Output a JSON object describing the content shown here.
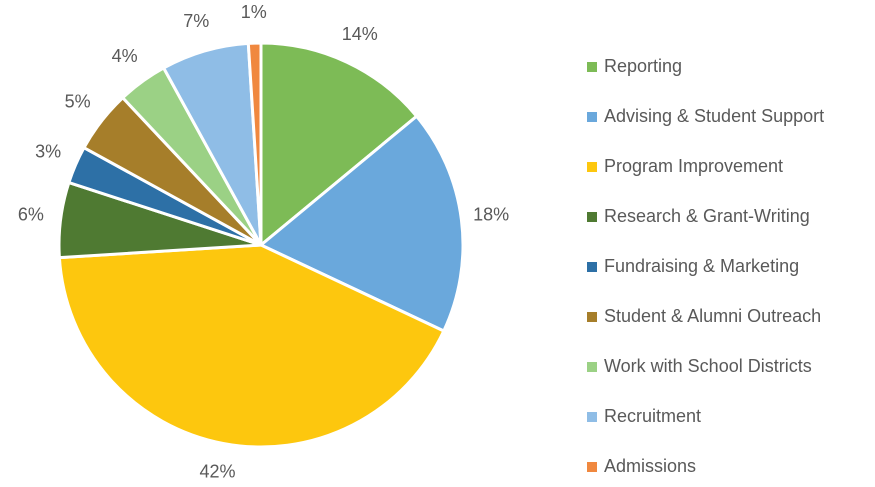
{
  "chart_data": {
    "type": "pie",
    "categories": [
      "Reporting",
      "Advising & Student Support",
      "Program Improvement",
      "Research & Grant-Writing",
      "Fundraising & Marketing",
      "Student & Alumni Outreach",
      "Work with School Districts",
      "Recruitment",
      "Admissions"
    ],
    "values": [
      14,
      18,
      42,
      6,
      3,
      5,
      4,
      7,
      1
    ],
    "value_labels": [
      "14%",
      "18%",
      "42%",
      "6%",
      "3%",
      "5%",
      "4%",
      "7%",
      "1%"
    ],
    "colors": [
      "#7dbb56",
      "#6aa8dc",
      "#fdc70e",
      "#4f7a32",
      "#2d70a6",
      "#a67e2a",
      "#9bd185",
      "#8fbde6",
      "#f0883f"
    ],
    "legend": "right"
  }
}
